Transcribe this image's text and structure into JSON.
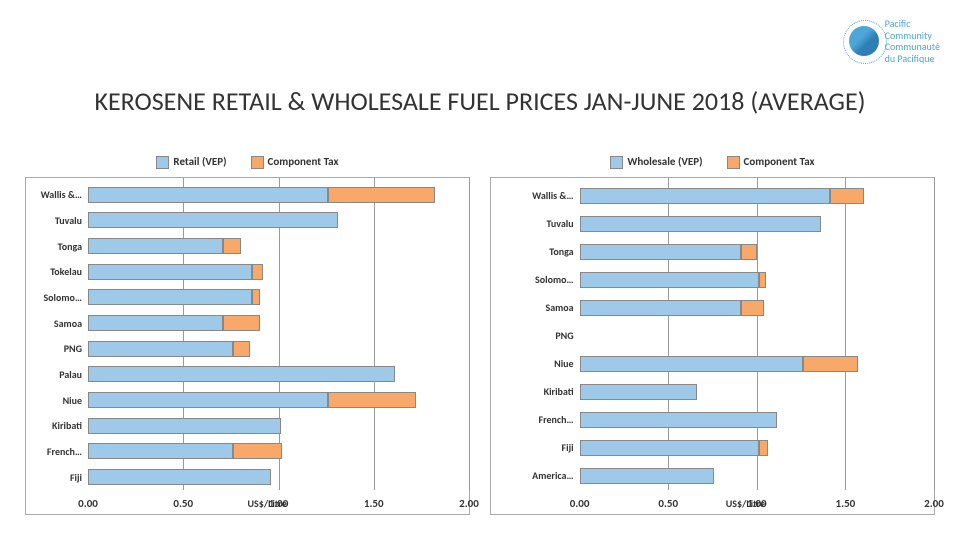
{
  "title": "KEROSENE RETAIL & WHOLESALE FUEL PRICES JAN-JUNE 2018 (AVERAGE)",
  "logo": {
    "line1": "Pacific",
    "line2": "Community",
    "line3": "Communauté",
    "line4": "du Pacifique"
  },
  "colors": {
    "series1": "#9fc9e8",
    "series2": "#f8a96a",
    "border": "#888"
  },
  "left_chart": {
    "legend1": "Retail (VEP)",
    "legend2": "Component Tax",
    "x_label": "US$/Litre",
    "xmax": 2.0,
    "ticks": [
      0.0,
      0.5,
      1.0,
      1.5,
      2.0
    ],
    "label_col_pct": 14,
    "categories": [
      "Wallis &…",
      "Tuvalu",
      "Tonga",
      "Tokelau",
      "Solomo…",
      "Samoa",
      "PNG",
      "Palau",
      "Niue",
      "Kiribati",
      "French…",
      "Fiji"
    ],
    "s1": [
      1.25,
      1.3,
      0.7,
      0.85,
      0.85,
      0.7,
      0.75,
      1.6,
      1.25,
      1.0,
      0.75,
      0.95
    ],
    "s2": [
      0.55,
      0.0,
      0.08,
      0.05,
      0.03,
      0.18,
      0.08,
      0.0,
      0.45,
      0.0,
      0.25,
      0.0
    ]
  },
  "right_chart": {
    "legend1": "Wholesale (VEP)",
    "legend2": "Component Tax",
    "x_label": "US$/Litre",
    "xmax": 2.0,
    "ticks": [
      0.0,
      0.5,
      1.0,
      1.5,
      2.0
    ],
    "label_col_pct": 20,
    "categories": [
      "Wallis &…",
      "Tuvalu",
      "Tonga",
      "Solomo…",
      "Samoa",
      "PNG",
      "Niue",
      "Kiribati",
      "French…",
      "Fiji",
      "America…"
    ],
    "s1": [
      1.4,
      1.35,
      0.9,
      1.0,
      0.9,
      0.0,
      1.25,
      0.65,
      1.1,
      1.0,
      0.75
    ],
    "s2": [
      0.18,
      0.0,
      0.08,
      0.03,
      0.12,
      0.0,
      0.3,
      0.0,
      0.0,
      0.04,
      0.0
    ]
  }
}
